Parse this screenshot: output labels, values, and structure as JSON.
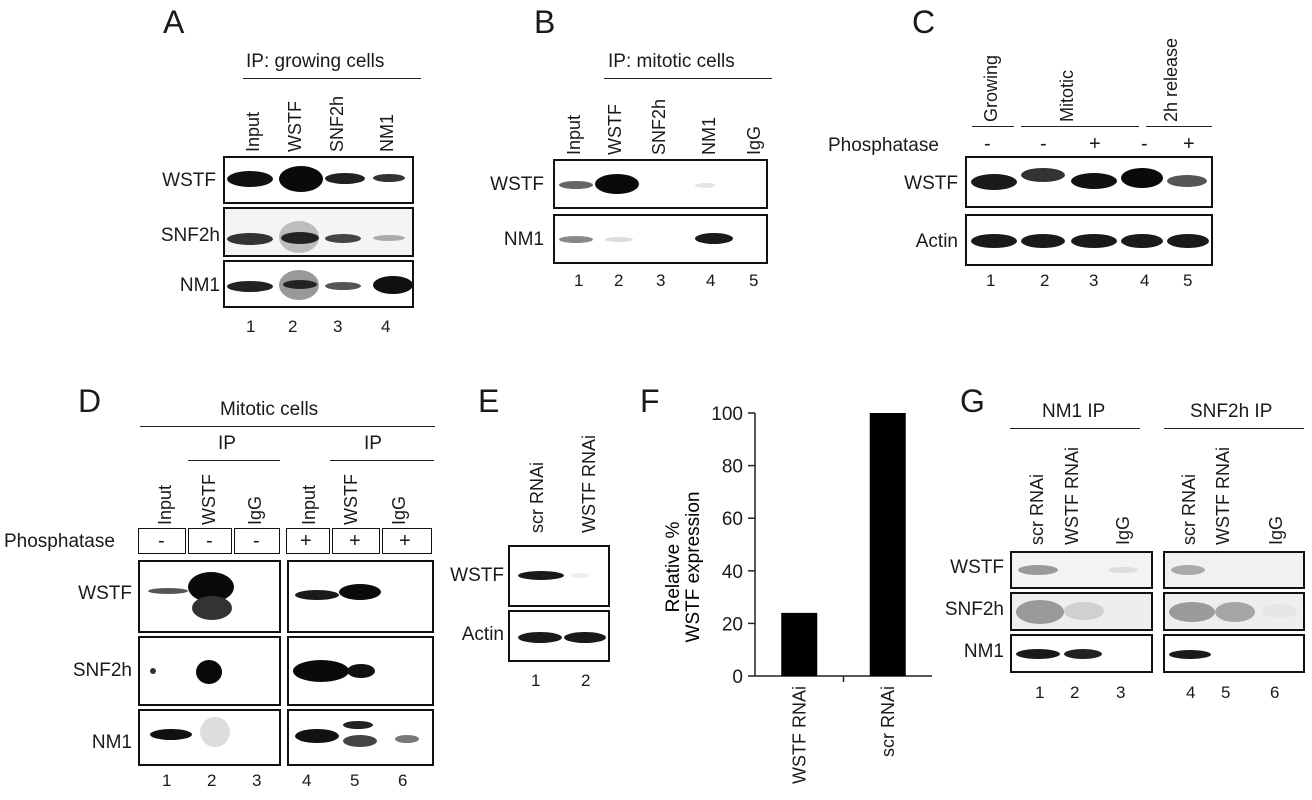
{
  "panels": {
    "A": {
      "letter": "A",
      "header": "IP: growing cells",
      "lanes": [
        "Input",
        "WSTF",
        "SNF2h",
        "NM1"
      ],
      "rows": [
        "WSTF",
        "SNF2h",
        "NM1"
      ],
      "numbers": [
        "1",
        "2",
        "3",
        "4"
      ]
    },
    "B": {
      "letter": "B",
      "header": "IP: mitotic cells",
      "lanes": [
        "Input",
        "WSTF",
        "SNF2h",
        "NM1",
        "IgG"
      ],
      "rows": [
        "WSTF",
        "NM1"
      ],
      "numbers": [
        "1",
        "2",
        "3",
        "4",
        "5"
      ]
    },
    "C": {
      "letter": "C",
      "groups": [
        "Growing",
        "Mitotic",
        "2h release"
      ],
      "phosphatase_label": "Phosphatase",
      "signs": [
        "-",
        "-",
        "+",
        "-",
        "+"
      ],
      "rows": [
        "WSTF",
        "Actin"
      ],
      "numbers": [
        "1",
        "2",
        "3",
        "4",
        "5"
      ]
    },
    "D": {
      "letter": "D",
      "header": "Mitotic cells",
      "ip_labels": [
        "IP",
        "IP"
      ],
      "lanes": [
        "Input",
        "WSTF",
        "IgG",
        "Input",
        "WSTF",
        "IgG"
      ],
      "phosphatase_label": "Phosphatase",
      "signs": [
        "-",
        "-",
        "-",
        "+",
        "+",
        "+"
      ],
      "rows": [
        "WSTF",
        "SNF2h",
        "NM1"
      ],
      "numbers": [
        "1",
        "2",
        "3",
        "4",
        "5",
        "6"
      ]
    },
    "E": {
      "letter": "E",
      "lanes": [
        "scr RNAi",
        "WSTF RNAi"
      ],
      "rows": [
        "WSTF",
        "Actin"
      ],
      "numbers": [
        "1",
        "2"
      ]
    },
    "F": {
      "letter": "F"
    },
    "G": {
      "letter": "G",
      "groups": [
        "NM1 IP",
        "SNF2h IP"
      ],
      "lanes": [
        "scr RNAi",
        "WSTF RNAi",
        "IgG",
        "scr RNAi",
        "WSTF RNAi",
        "IgG"
      ],
      "rows": [
        "WSTF",
        "SNF2h",
        "NM1"
      ],
      "numbers": [
        "1",
        "2",
        "3",
        "4",
        "5",
        "6"
      ]
    }
  },
  "chart_data": {
    "type": "bar",
    "categories": [
      "WSTF RNAi",
      "scr RNAi"
    ],
    "values": [
      24,
      100
    ],
    "ylabel": "Relative % WSTF expression",
    "ylabel_lines": [
      "Relative %",
      "WSTF expression"
    ],
    "yticks": [
      "0",
      "20",
      "40",
      "60",
      "80",
      "100"
    ],
    "ylim": [
      0,
      100
    ],
    "bar_color": "#000000"
  }
}
